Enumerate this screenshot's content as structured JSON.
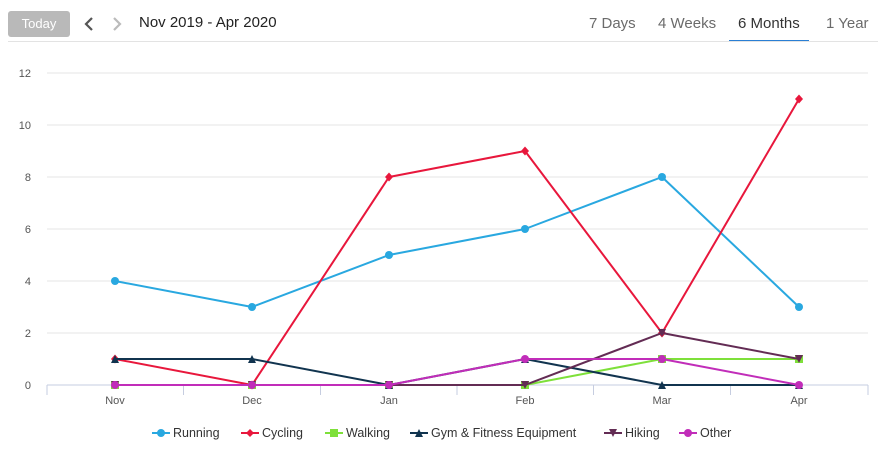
{
  "toolbar": {
    "today_label": "Today",
    "prev_icon": "chevron-left-icon",
    "next_icon": "chevron-right-icon",
    "range_label": "Nov 2019 - Apr 2020",
    "tabs": [
      {
        "label": "7 Days",
        "active": false
      },
      {
        "label": "4 Weeks",
        "active": false
      },
      {
        "label": "6 Months",
        "active": true
      },
      {
        "label": "1 Year",
        "active": false
      }
    ],
    "accent_color": "#2a7fd4"
  },
  "chart_data": {
    "type": "line",
    "title": "",
    "xlabel": "",
    "ylabel": "",
    "categories": [
      "Nov",
      "Dec",
      "Jan",
      "Feb",
      "Mar",
      "Apr"
    ],
    "ylim": [
      0,
      12
    ],
    "yticks": [
      0,
      2,
      4,
      6,
      8,
      10,
      12
    ],
    "grid": true,
    "legend_position": "bottom",
    "series": [
      {
        "name": "Running",
        "color": "#29a8e0",
        "marker": "circle",
        "values": [
          4,
          3,
          5,
          6,
          8,
          3
        ]
      },
      {
        "name": "Cycling",
        "color": "#e8173c",
        "marker": "diamond",
        "values": [
          1,
          0,
          8,
          9,
          2,
          11
        ]
      },
      {
        "name": "Walking",
        "color": "#7ee03a",
        "marker": "square",
        "values": [
          0,
          0,
          0,
          0,
          1,
          1
        ]
      },
      {
        "name": "Gym & Fitness Equipment",
        "color": "#11344f",
        "marker": "triangle",
        "values": [
          1,
          1,
          0,
          1,
          0,
          0
        ]
      },
      {
        "name": "Hiking",
        "color": "#632c54",
        "marker": "triangle-down",
        "values": [
          0,
          0,
          0,
          0,
          2,
          1
        ]
      },
      {
        "name": "Other",
        "color": "#c12db9",
        "marker": "circle",
        "values": [
          0,
          0,
          0,
          1,
          1,
          0
        ]
      }
    ]
  }
}
